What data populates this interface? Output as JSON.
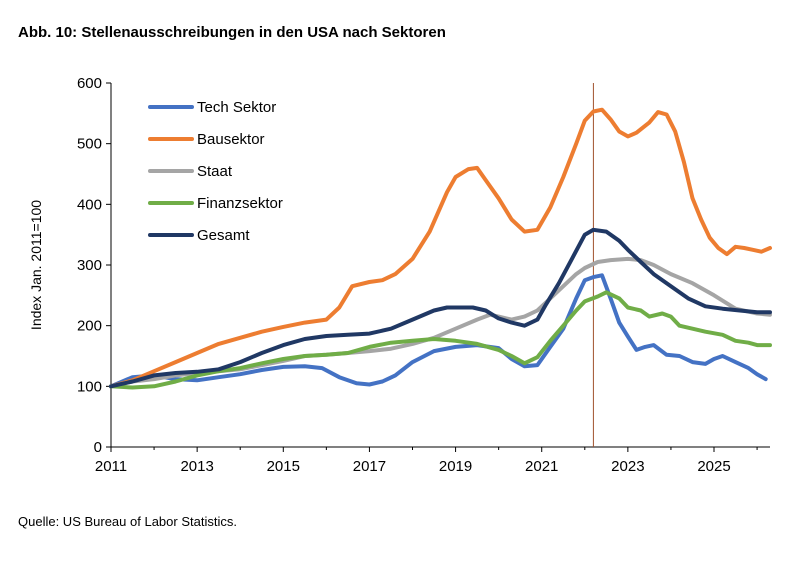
{
  "title": "Abb. 10: Stellenausschreibungen in den USA nach Sektoren",
  "source": "Quelle: US Bureau of Labor Statistics.",
  "chart_data": {
    "type": "line",
    "title": "Abb. 10: Stellenausschreibungen in den USA nach Sektoren",
    "ylabel": "Index Jan. 2011=100",
    "xlabel": "",
    "xlim": [
      2011,
      2026.3
    ],
    "ylim": [
      0,
      600
    ],
    "x_ticks": [
      "2011",
      "2013",
      "2015",
      "2017",
      "2019",
      "2021",
      "2023",
      "2025"
    ],
    "y_ticks": [
      "0",
      "100",
      "200",
      "300",
      "400",
      "500",
      "600"
    ],
    "grid": false,
    "legend_position": "top-left",
    "vline": {
      "x": 2022.2,
      "color": "#A0522D"
    },
    "series": [
      {
        "name": "Tech Sektor",
        "color": "#4472C4",
        "points": [
          [
            2011,
            100
          ],
          [
            2011.5,
            115
          ],
          [
            2012,
            118
          ],
          [
            2012.5,
            112
          ],
          [
            2013,
            110
          ],
          [
            2013.5,
            115
          ],
          [
            2014,
            120
          ],
          [
            2014.5,
            127
          ],
          [
            2015,
            132
          ],
          [
            2015.5,
            133
          ],
          [
            2015.9,
            130
          ],
          [
            2016.3,
            115
          ],
          [
            2016.7,
            105
          ],
          [
            2017,
            103
          ],
          [
            2017.3,
            108
          ],
          [
            2017.6,
            118
          ],
          [
            2018,
            140
          ],
          [
            2018.5,
            158
          ],
          [
            2019,
            165
          ],
          [
            2019.5,
            168
          ],
          [
            2020,
            163
          ],
          [
            2020.3,
            145
          ],
          [
            2020.6,
            133
          ],
          [
            2020.9,
            135
          ],
          [
            2021.2,
            165
          ],
          [
            2021.5,
            195
          ],
          [
            2021.8,
            245
          ],
          [
            2022,
            275
          ],
          [
            2022.2,
            280
          ],
          [
            2022.4,
            283
          ],
          [
            2022.6,
            245
          ],
          [
            2022.8,
            205
          ],
          [
            2023,
            182
          ],
          [
            2023.2,
            160
          ],
          [
            2023.4,
            165
          ],
          [
            2023.6,
            168
          ],
          [
            2023.9,
            152
          ],
          [
            2024.2,
            150
          ],
          [
            2024.5,
            140
          ],
          [
            2024.8,
            137
          ],
          [
            2025,
            145
          ],
          [
            2025.2,
            150
          ],
          [
            2025.5,
            140
          ],
          [
            2025.8,
            130
          ],
          [
            2026,
            120
          ],
          [
            2026.2,
            112
          ]
        ]
      },
      {
        "name": "Bausektor",
        "color": "#ED7D31",
        "points": [
          [
            2011,
            100
          ],
          [
            2011.5,
            110
          ],
          [
            2012,
            125
          ],
          [
            2012.5,
            140
          ],
          [
            2013,
            155
          ],
          [
            2013.5,
            170
          ],
          [
            2014,
            180
          ],
          [
            2014.5,
            190
          ],
          [
            2015,
            198
          ],
          [
            2015.5,
            205
          ],
          [
            2016,
            210
          ],
          [
            2016.3,
            230
          ],
          [
            2016.6,
            265
          ],
          [
            2017,
            272
          ],
          [
            2017.3,
            275
          ],
          [
            2017.6,
            285
          ],
          [
            2018,
            310
          ],
          [
            2018.4,
            355
          ],
          [
            2018.8,
            420
          ],
          [
            2019,
            445
          ],
          [
            2019.3,
            458
          ],
          [
            2019.5,
            460
          ],
          [
            2019.7,
            440
          ],
          [
            2020,
            410
          ],
          [
            2020.3,
            375
          ],
          [
            2020.6,
            355
          ],
          [
            2020.9,
            358
          ],
          [
            2021.2,
            395
          ],
          [
            2021.5,
            445
          ],
          [
            2021.8,
            500
          ],
          [
            2022,
            538
          ],
          [
            2022.2,
            553
          ],
          [
            2022.4,
            556
          ],
          [
            2022.6,
            540
          ],
          [
            2022.8,
            520
          ],
          [
            2023,
            512
          ],
          [
            2023.2,
            518
          ],
          [
            2023.5,
            535
          ],
          [
            2023.7,
            552
          ],
          [
            2023.9,
            548
          ],
          [
            2024.1,
            520
          ],
          [
            2024.3,
            470
          ],
          [
            2024.5,
            410
          ],
          [
            2024.7,
            375
          ],
          [
            2024.9,
            345
          ],
          [
            2025.1,
            328
          ],
          [
            2025.3,
            318
          ],
          [
            2025.5,
            330
          ],
          [
            2025.7,
            328
          ],
          [
            2025.9,
            325
          ],
          [
            2026.1,
            322
          ],
          [
            2026.3,
            328
          ]
        ]
      },
      {
        "name": "Staat",
        "color": "#A5A5A5",
        "points": [
          [
            2011,
            100
          ],
          [
            2011.5,
            108
          ],
          [
            2012,
            112
          ],
          [
            2012.5,
            118
          ],
          [
            2013,
            122
          ],
          [
            2013.5,
            125
          ],
          [
            2014,
            128
          ],
          [
            2014.5,
            135
          ],
          [
            2015,
            142
          ],
          [
            2015.5,
            150
          ],
          [
            2016,
            152
          ],
          [
            2016.5,
            155
          ],
          [
            2017,
            158
          ],
          [
            2017.5,
            162
          ],
          [
            2018,
            170
          ],
          [
            2018.5,
            180
          ],
          [
            2019,
            195
          ],
          [
            2019.5,
            210
          ],
          [
            2019.8,
            218
          ],
          [
            2020,
            215
          ],
          [
            2020.3,
            210
          ],
          [
            2020.6,
            215
          ],
          [
            2020.9,
            225
          ],
          [
            2021.2,
            245
          ],
          [
            2021.5,
            265
          ],
          [
            2021.8,
            285
          ],
          [
            2022,
            295
          ],
          [
            2022.3,
            305
          ],
          [
            2022.6,
            308
          ],
          [
            2023,
            310
          ],
          [
            2023.3,
            308
          ],
          [
            2023.6,
            300
          ],
          [
            2024,
            285
          ],
          [
            2024.5,
            270
          ],
          [
            2025,
            250
          ],
          [
            2025.5,
            228
          ],
          [
            2026,
            220
          ],
          [
            2026.3,
            218
          ]
        ]
      },
      {
        "name": "Finanzsektor",
        "color": "#70AD47",
        "points": [
          [
            2011,
            100
          ],
          [
            2011.5,
            98
          ],
          [
            2012,
            100
          ],
          [
            2012.5,
            108
          ],
          [
            2013,
            118
          ],
          [
            2013.5,
            125
          ],
          [
            2014,
            130
          ],
          [
            2014.5,
            138
          ],
          [
            2015,
            145
          ],
          [
            2015.5,
            150
          ],
          [
            2016,
            152
          ],
          [
            2016.5,
            155
          ],
          [
            2017,
            165
          ],
          [
            2017.5,
            172
          ],
          [
            2018,
            175
          ],
          [
            2018.5,
            178
          ],
          [
            2019,
            175
          ],
          [
            2019.5,
            170
          ],
          [
            2020,
            160
          ],
          [
            2020.3,
            150
          ],
          [
            2020.6,
            138
          ],
          [
            2020.9,
            148
          ],
          [
            2021.2,
            175
          ],
          [
            2021.5,
            200
          ],
          [
            2021.8,
            225
          ],
          [
            2022,
            240
          ],
          [
            2022.3,
            248
          ],
          [
            2022.5,
            255
          ],
          [
            2022.8,
            245
          ],
          [
            2023,
            230
          ],
          [
            2023.3,
            225
          ],
          [
            2023.5,
            215
          ],
          [
            2023.8,
            220
          ],
          [
            2024,
            215
          ],
          [
            2024.2,
            200
          ],
          [
            2024.5,
            195
          ],
          [
            2024.8,
            190
          ],
          [
            2025.2,
            185
          ],
          [
            2025.5,
            175
          ],
          [
            2025.8,
            172
          ],
          [
            2026,
            168
          ],
          [
            2026.3,
            168
          ]
        ]
      },
      {
        "name": "Gesamt",
        "color": "#203864",
        "points": [
          [
            2011,
            100
          ],
          [
            2011.5,
            108
          ],
          [
            2012,
            118
          ],
          [
            2012.5,
            122
          ],
          [
            2013,
            124
          ],
          [
            2013.5,
            128
          ],
          [
            2014,
            140
          ],
          [
            2014.5,
            155
          ],
          [
            2015,
            168
          ],
          [
            2015.5,
            178
          ],
          [
            2016,
            183
          ],
          [
            2016.5,
            185
          ],
          [
            2017,
            187
          ],
          [
            2017.5,
            195
          ],
          [
            2018,
            210
          ],
          [
            2018.5,
            225
          ],
          [
            2018.8,
            230
          ],
          [
            2019,
            230
          ],
          [
            2019.4,
            230
          ],
          [
            2019.7,
            225
          ],
          [
            2020,
            212
          ],
          [
            2020.3,
            205
          ],
          [
            2020.6,
            200
          ],
          [
            2020.9,
            210
          ],
          [
            2021.1,
            235
          ],
          [
            2021.4,
            270
          ],
          [
            2021.7,
            310
          ],
          [
            2022,
            350
          ],
          [
            2022.2,
            358
          ],
          [
            2022.5,
            355
          ],
          [
            2022.8,
            340
          ],
          [
            2023,
            325
          ],
          [
            2023.3,
            305
          ],
          [
            2023.6,
            285
          ],
          [
            2024,
            265
          ],
          [
            2024.4,
            245
          ],
          [
            2024.8,
            232
          ],
          [
            2025.2,
            228
          ],
          [
            2025.6,
            225
          ],
          [
            2026,
            222
          ],
          [
            2026.3,
            222
          ]
        ]
      }
    ]
  }
}
